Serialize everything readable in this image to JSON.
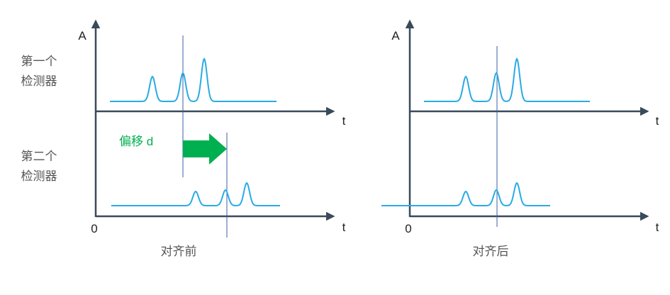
{
  "left_panel": {
    "y_axis_label": "A",
    "x_axis_labels": [
      "t",
      "t"
    ],
    "origin_label": "0",
    "caption": "对齐前",
    "shift_label": "偏移 d"
  },
  "right_panel": {
    "y_axis_label": "A",
    "x_axis_labels": [
      "t",
      "t"
    ],
    "origin_label": "0",
    "caption": "对齐后"
  },
  "row_labels": [
    [
      "第一个",
      "检测器"
    ],
    [
      "第二个",
      "检测器"
    ]
  ]
}
